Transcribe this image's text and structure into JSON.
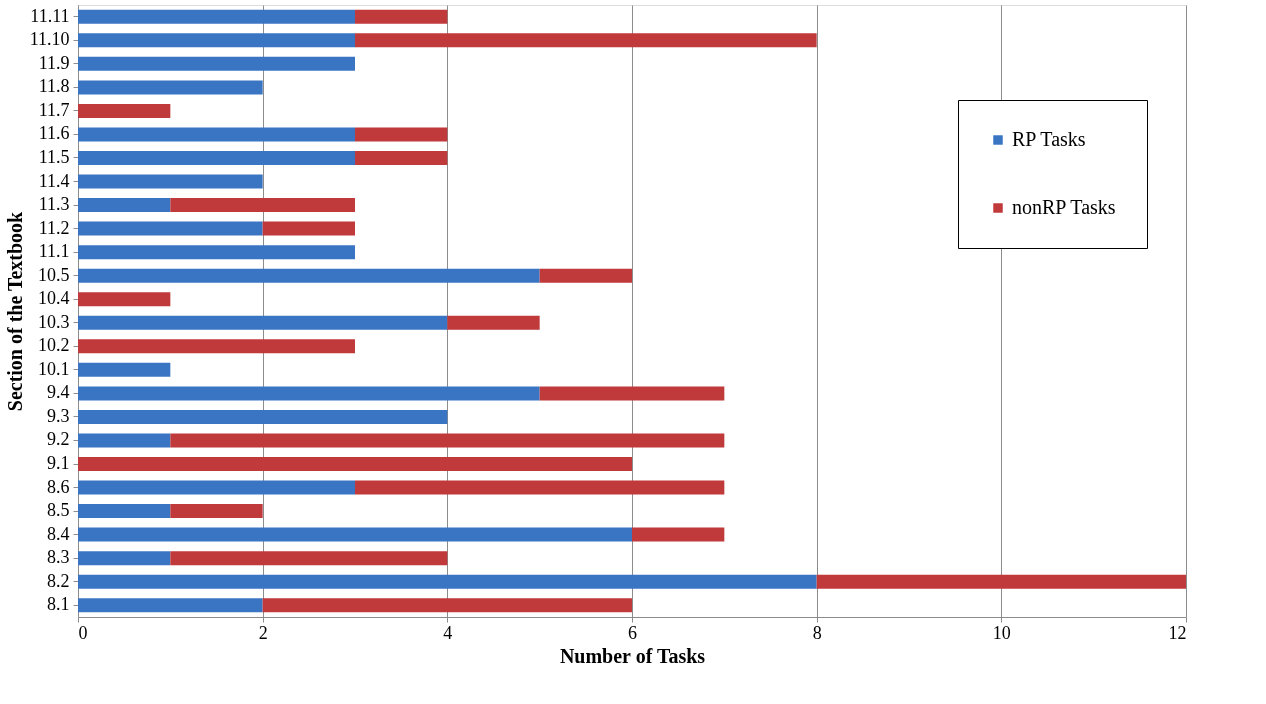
{
  "chart_data": {
    "type": "bar",
    "orientation": "horizontal",
    "stacked": true,
    "xlabel": "Number of Tasks",
    "ylabel": "Section of the Textbook",
    "categories": [
      "11.11",
      "11.10",
      "11.9",
      "11.8",
      "11.7",
      "11.6",
      "11.5",
      "11.4",
      "11.3",
      "11.2",
      "11.1",
      "10.5",
      "10.4",
      "10.3",
      "10.2",
      "10.1",
      "9.4",
      "9.3",
      "9.2",
      "9.1",
      "8.6",
      "8.5",
      "8.4",
      "8.3",
      "8.2",
      "8.1"
    ],
    "series": [
      {
        "name": "RP Tasks",
        "color": "#3a75c4",
        "values": [
          3,
          3,
          3,
          2,
          0,
          3,
          3,
          2,
          1,
          2,
          3,
          5,
          0,
          4,
          0,
          1,
          5,
          4,
          1,
          0,
          3,
          1,
          6,
          1,
          8,
          2
        ]
      },
      {
        "name": "nonRP Tasks",
        "color": "#c0393b",
        "values": [
          1,
          5,
          0,
          0,
          1,
          1,
          1,
          0,
          2,
          1,
          0,
          1,
          1,
          1,
          3,
          0,
          2,
          0,
          6,
          6,
          4,
          1,
          1,
          3,
          4,
          4
        ]
      }
    ],
    "xlim": [
      0,
      12
    ],
    "xticks": [
      0,
      2,
      4,
      6,
      8,
      10,
      12
    ],
    "grid": "x",
    "legend": "right"
  }
}
